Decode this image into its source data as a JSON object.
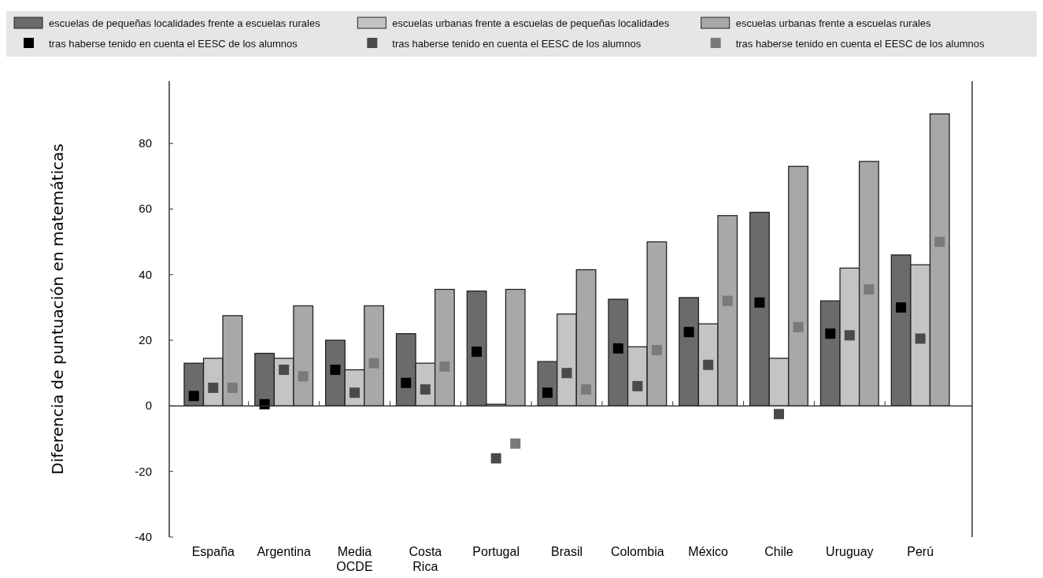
{
  "chart_data": {
    "type": "bar",
    "ylabel": "Diferencia de puntuación en matemáticas",
    "categories": [
      "España",
      "Argentina",
      "Media OCDE",
      "Costa Rica",
      "Portugal",
      "Brasil",
      "Colombia",
      "México",
      "Chile",
      "Uruguay",
      "Perú"
    ],
    "series": [
      {
        "name": "escuelas de pequeñas localidades frente a escuelas rurales",
        "color": "#6b6b6b",
        "values": [
          13,
          16,
          20,
          22,
          35,
          13.5,
          32.5,
          33,
          59,
          32,
          46
        ]
      },
      {
        "name": "escuelas urbanas frente a escuelas de pequeñas localidades",
        "color": "#c4c4c4",
        "values": [
          14.5,
          14.5,
          11,
          13,
          0.5,
          28,
          18,
          25,
          14.5,
          42,
          43
        ]
      },
      {
        "name": "escuelas urbanas frente a escuelas rurales",
        "color": "#a8a8a8",
        "values": [
          27.5,
          30.5,
          30.5,
          35.5,
          35.5,
          41.5,
          50,
          58,
          73,
          74.5,
          89
        ]
      },
      {
        "name": "tras haberse tenido en cuenta el EESC de los alumnos",
        "type": "scatter",
        "color": "#000000",
        "x": [
          "España",
          "Argentina",
          "Media OCDE",
          "Costa Rica",
          "Portugal",
          "Brasil",
          "Colombia",
          "México",
          "Chile",
          "Uruguay",
          "Perú"
        ],
        "values": [
          3,
          0.5,
          11,
          7,
          16.5,
          4,
          17.5,
          22.5,
          31.5,
          22,
          30
        ]
      },
      {
        "name": "tras haberse tenido en cuenta el EESC de los alumnos",
        "type": "scatter",
        "color": "#4a4a4a",
        "x": [
          "España",
          "Argentina",
          "Media OCDE",
          "Costa Rica",
          "Portugal",
          "Brasil",
          "Colombia",
          "México",
          "Chile",
          "Uruguay",
          "Perú"
        ],
        "values": [
          5.5,
          11,
          4,
          5,
          -16,
          10,
          6,
          12.5,
          -2.5,
          21.5,
          20.5
        ]
      },
      {
        "name": "tras haberse tenido en cuenta el EESC de los alumnos",
        "type": "scatter",
        "color": "#7a7a7a",
        "x": [
          "España",
          "Argentina",
          "Media OCDE",
          "Costa Rica",
          "Portugal",
          "Brasil",
          "Colombia",
          "México",
          "Chile",
          "Uruguay",
          "Perú"
        ],
        "values": [
          5.5,
          9,
          13,
          12,
          -11.5,
          5,
          17,
          32,
          24,
          35.5,
          50
        ]
      }
    ],
    "ylim": [
      -40,
      99
    ],
    "yticks": [
      -40,
      -20,
      0,
      20,
      40,
      60,
      80
    ],
    "legend": "top",
    "marker": "square"
  }
}
